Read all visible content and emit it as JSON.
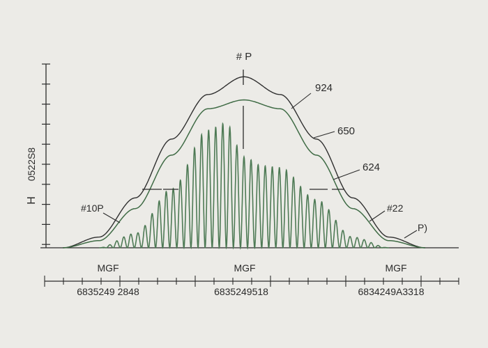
{
  "colors": {
    "background": "#ecebe7",
    "axis": "#2b2b2b",
    "outer_curve": "#2f2f2f",
    "inner_curve": "#3f6b45",
    "oscillation": "#4e7a55"
  },
  "chart_data": {
    "type": "line",
    "title": "# P",
    "ylabel": "H",
    "ytick_label": "0522S8",
    "xlim": [
      0,
      10
    ],
    "ylim": [
      0,
      10
    ],
    "grid": false,
    "legend": "none",
    "section_labels": [
      "MGF",
      "MGF",
      "MGF"
    ],
    "bottom_tick_labels": [
      "6835249 2848",
      "6835249518",
      "6834249A3318"
    ],
    "annotations": [
      "924",
      "650",
      "624",
      "#10P",
      "#22",
      "P)"
    ],
    "series": [
      {
        "style": "outer-bell",
        "x": [
          0,
          1,
          2,
          3,
          4,
          5,
          6,
          7,
          8,
          9,
          10
        ],
        "y": [
          0,
          0.6,
          2.8,
          6.1,
          8.6,
          9.6,
          8.6,
          6.1,
          2.8,
          0.6,
          0
        ]
      },
      {
        "style": "inner-bell",
        "x": [
          0,
          1,
          2,
          3,
          4,
          5,
          6,
          7,
          8,
          9,
          10
        ],
        "y": [
          0,
          0.4,
          2.2,
          5.2,
          7.8,
          8.3,
          7.8,
          5.2,
          2.2,
          0.4,
          0
        ]
      },
      {
        "style": "oscillation-envelope",
        "x": [
          1,
          2,
          3,
          4,
          4.5,
          5,
          5.5,
          6,
          7,
          8,
          9
        ],
        "y": [
          0,
          0.8,
          3.3,
          6.6,
          7.0,
          5.1,
          4.6,
          4.5,
          2.7,
          0.6,
          0
        ]
      }
    ]
  }
}
